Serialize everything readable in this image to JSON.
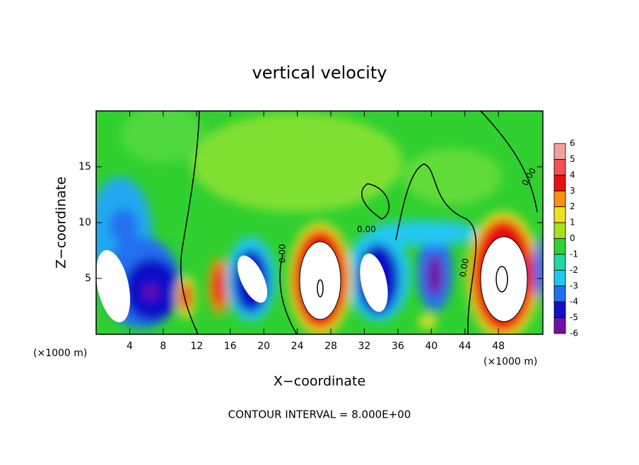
{
  "chart_data": {
    "type": "contour",
    "title": "vertical velocity",
    "xlabel": "X−coordinate",
    "ylabel": "Z−coordinate",
    "x_unit_label": "(×1000 m)",
    "footer": "CONTOUR INTERVAL = 8.000E+00",
    "contour_label": "0.00",
    "xlim": [
      0,
      53.3
    ],
    "xticks": [
      4,
      8,
      12,
      16,
      20,
      24,
      28,
      32,
      36,
      40,
      44,
      48
    ],
    "ylim": [
      0,
      20
    ],
    "yticks": [
      5,
      10,
      15
    ],
    "colorbar": {
      "levels": [
        6,
        5,
        4,
        3,
        2,
        1,
        0,
        -1,
        -2,
        -3,
        -4,
        -5,
        -6
      ],
      "colors": [
        "#f4a0a0",
        "#f45050",
        "#e81010",
        "#f89010",
        "#f0e020",
        "#a8e020",
        "#30d030",
        "#20d8a0",
        "#20c8f0",
        "#2070f0",
        "#1010c8",
        "#7010a8"
      ]
    }
  }
}
